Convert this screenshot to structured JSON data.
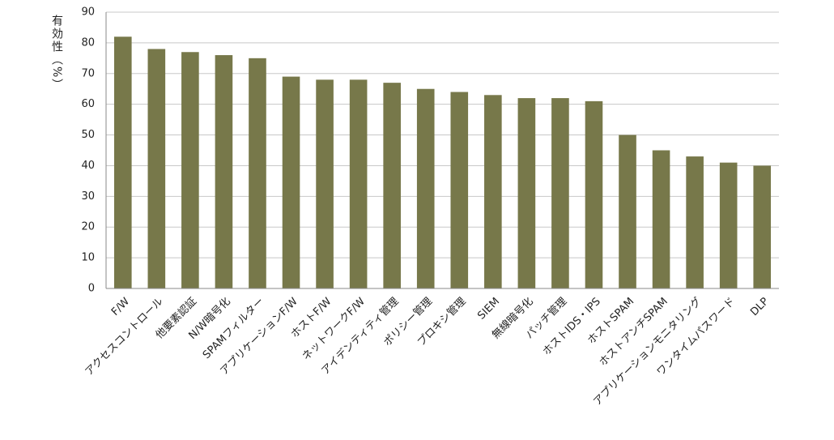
{
  "chart_data": {
    "type": "bar",
    "y_label": "有効性（%）",
    "categories": [
      "F/W",
      "アクセスコントロール",
      "他要素認証",
      "N/W暗号化",
      "SPAMフィルター",
      "アプリケーションF/W",
      "ホストF/W",
      "ネットワークF/W",
      "アイデンティティ管理",
      "ポリシー管理",
      "プロキシ管理",
      "SIEM",
      "無線暗号化",
      "パッチ管理",
      "ホストIDS・IPS",
      "ホストSPAM",
      "ホストアンチSPAM",
      "アプリケーションモニタリング",
      "ワンタイムパスワード",
      "DLP"
    ],
    "values": [
      82,
      78,
      77,
      76,
      75,
      69,
      68,
      68,
      67,
      65,
      64,
      63,
      62,
      62,
      61,
      50,
      45,
      43,
      41,
      40
    ],
    "color": "#77784a",
    "ylim": [
      0,
      90
    ],
    "yticks": [
      0,
      10,
      20,
      30,
      40,
      50,
      60,
      70,
      80,
      90
    ],
    "grid": true
  }
}
